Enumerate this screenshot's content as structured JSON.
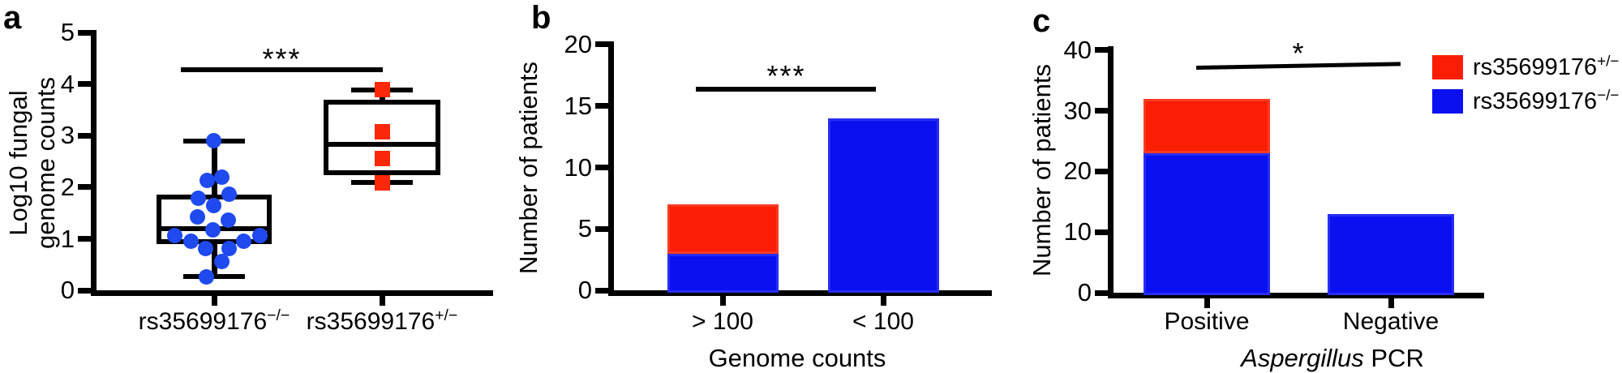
{
  "figure": {
    "panels": [
      {
        "letter": "a"
      },
      {
        "letter": "b"
      },
      {
        "letter": "c"
      }
    ]
  },
  "colors": {
    "bar_blue": "#0b10f1",
    "bar_red": "#fb1e04",
    "point_blue": "#1e4af0",
    "point_red": "#fa2808",
    "axis_black": "#000000"
  },
  "chart_data": [
    {
      "type": "boxplot-scatter",
      "panel": "a",
      "ylabel": "Log10 fungal genome counts",
      "ylabel_lines": [
        "Log10 fungal",
        "genome counts"
      ],
      "ylim": [
        0,
        5
      ],
      "yticks": [
        0,
        1,
        2,
        3,
        4,
        5
      ],
      "significance": {
        "label": "***"
      },
      "groups": [
        {
          "name": "rs35699176−/−",
          "name_base": "rs35699176",
          "name_sup": "−/−",
          "marker": "circle",
          "color": "#1e4af0",
          "box": {
            "q1": 0.9,
            "median": 1.2,
            "q3": 1.86,
            "whisker_low": 0.27,
            "whisker_high": 2.9
          },
          "points": [
            {
              "v": 2.9,
              "dx": -1
            },
            {
              "v": 2.2,
              "dx": 9
            },
            {
              "v": 2.14,
              "dx": -9
            },
            {
              "v": 1.86,
              "dx": 18
            },
            {
              "v": 1.78,
              "dx": -20
            },
            {
              "v": 1.65,
              "dx": -1
            },
            {
              "v": 1.42,
              "dx": -21
            },
            {
              "v": 1.37,
              "dx": 17
            },
            {
              "v": 1.18,
              "dx": -2
            },
            {
              "v": 1.07,
              "dx": 56
            },
            {
              "v": 1.06,
              "dx": -49
            },
            {
              "v": 0.96,
              "dx": -29
            },
            {
              "v": 0.95,
              "dx": 36
            },
            {
              "v": 0.81,
              "dx": -11
            },
            {
              "v": 0.81,
              "dx": 18
            },
            {
              "v": 0.57,
              "dx": 9
            },
            {
              "v": 0.27,
              "dx": -10
            }
          ]
        },
        {
          "name": "rs35699176+/−",
          "name_base": "rs35699176",
          "name_sup": "+/−",
          "marker": "square",
          "color": "#fa2808",
          "box": {
            "q1": 2.24,
            "median": 2.84,
            "q3": 3.7,
            "whisker_low": 2.1,
            "whisker_high": 3.89
          },
          "points": [
            {
              "v": 3.89,
              "dx": 0
            },
            {
              "v": 3.08,
              "dx": 0
            },
            {
              "v": 2.55,
              "dx": 0
            },
            {
              "v": 2.08,
              "dx": 0
            }
          ]
        }
      ]
    },
    {
      "type": "bar",
      "panel": "b",
      "stacked": true,
      "categories": [
        "> 100",
        "< 100"
      ],
      "series": [
        {
          "name": "rs35699176−/−",
          "color": "#0b10f1",
          "values": [
            3,
            14
          ]
        },
        {
          "name": "rs35699176+/−",
          "color": "#fb1e04",
          "values": [
            4,
            0
          ]
        }
      ],
      "xlabel": "Genome counts",
      "ylabel": "Number of patients",
      "ylim": [
        0,
        20
      ],
      "yticks": [
        0,
        5,
        10,
        15,
        20
      ],
      "significance": {
        "label": "***"
      }
    },
    {
      "type": "bar",
      "panel": "c",
      "stacked": true,
      "categories": [
        "Positive",
        "Negative"
      ],
      "series": [
        {
          "name": "rs35699176−/−",
          "color": "#0b10f1",
          "values": [
            23,
            13
          ]
        },
        {
          "name": "rs35699176+/−",
          "color": "#fb1e04",
          "values": [
            9,
            0
          ]
        }
      ],
      "xlabel": "Aspergillus PCR",
      "xlabel_italic": "Aspergillus",
      "xlabel_rest": " PCR",
      "ylabel": "Number of patients",
      "ylim": [
        0,
        40
      ],
      "yticks": [
        0,
        10,
        20,
        30,
        40
      ],
      "significance": {
        "label": "*"
      },
      "legend": [
        {
          "name": "rs35699176+/−",
          "name_base": "rs35699176",
          "name_sup": "+/−",
          "color": "#fb1e04"
        },
        {
          "name": "rs35699176−/−",
          "name_base": "rs35699176",
          "name_sup": "−/−",
          "color": "#0b10f1"
        }
      ]
    }
  ]
}
